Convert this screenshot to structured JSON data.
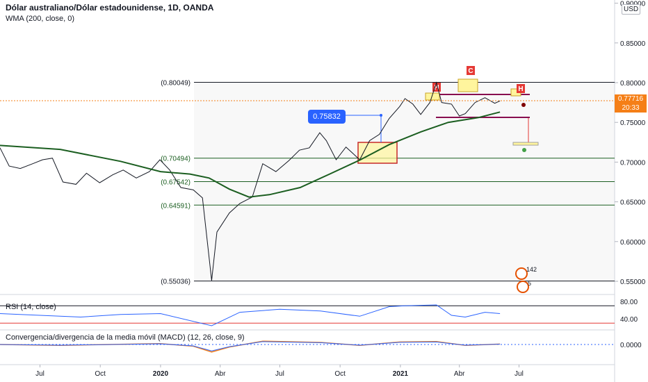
{
  "header": {
    "title": "Dólar australiano/Dólar estadounidense, 1D, OANDA",
    "indicator": "WMA (200, close, 0)"
  },
  "currency_button": "USD",
  "last_price": {
    "value": "0.77716",
    "countdown": "20:33",
    "color": "#f57f17"
  },
  "callout": "0.75832",
  "badges": {
    "h1": "H",
    "c": "C",
    "h2": "H",
    "count": "142",
    "small": "5"
  },
  "levels": [
    {
      "label": "(0.80049)",
      "value": 0.80049,
      "color": "#131722"
    },
    {
      "label": "(0.70494)",
      "value": 0.70494,
      "color": "#1b5e20"
    },
    {
      "label": "(0.67542)",
      "value": 0.67542,
      "color": "#1b5e20"
    },
    {
      "label": "(0.64591)",
      "value": 0.64591,
      "color": "#1b5e20"
    },
    {
      "label": "(0.55036)",
      "value": 0.55036,
      "color": "#131722"
    }
  ],
  "rsi": {
    "label": "RSI (14, close)",
    "ticks": [
      "80.00",
      "40.00"
    ]
  },
  "macd": {
    "label": "Convergencia/divergencia de la media móvil (MACD) (12, 26, close, 9)",
    "ticks": [
      "0.0000"
    ]
  },
  "chart_data": {
    "type": "line",
    "symbol": "AUDUSD",
    "timeframe": "1D",
    "ylim": [
      0.53,
      0.9
    ],
    "y_axis_ticks": [
      "0.55000",
      "0.60000",
      "0.65000",
      "0.70000",
      "0.75000",
      "0.80000",
      "0.85000",
      "0.90000"
    ],
    "x_axis_ticks": [
      "Jul",
      "Oct",
      "2020",
      "Abr",
      "Jul",
      "Oct",
      "2021",
      "Abr",
      "Jul"
    ],
    "x_start": "2019-05",
    "x_end": "2021-09",
    "series": [
      {
        "name": "AUDUSD",
        "color": "#131722",
        "points": [
          [
            "2019-05-01",
            0.718
          ],
          [
            "2019-05-15",
            0.695
          ],
          [
            "2019-06-01",
            0.692
          ],
          [
            "2019-06-20",
            0.698
          ],
          [
            "2019-07-05",
            0.703
          ],
          [
            "2019-07-20",
            0.705
          ],
          [
            "2019-08-05",
            0.675
          ],
          [
            "2019-08-25",
            0.672
          ],
          [
            "2019-09-10",
            0.686
          ],
          [
            "2019-09-30",
            0.674
          ],
          [
            "2019-10-20",
            0.684
          ],
          [
            "2019-11-05",
            0.69
          ],
          [
            "2019-11-25",
            0.68
          ],
          [
            "2019-12-15",
            0.688
          ],
          [
            "2019-12-31",
            0.703
          ],
          [
            "2020-01-15",
            0.69
          ],
          [
            "2020-02-01",
            0.668
          ],
          [
            "2020-02-20",
            0.665
          ],
          [
            "2020-03-05",
            0.655
          ],
          [
            "2020-03-19",
            0.551
          ],
          [
            "2020-03-27",
            0.612
          ],
          [
            "2020-04-15",
            0.636
          ],
          [
            "2020-05-01",
            0.648
          ],
          [
            "2020-05-20",
            0.656
          ],
          [
            "2020-06-05",
            0.698
          ],
          [
            "2020-06-25",
            0.688
          ],
          [
            "2020-07-15",
            0.702
          ],
          [
            "2020-07-31",
            0.715
          ],
          [
            "2020-08-15",
            0.718
          ],
          [
            "2020-08-31",
            0.737
          ],
          [
            "2020-09-10",
            0.727
          ],
          [
            "2020-09-25",
            0.703
          ],
          [
            "2020-10-10",
            0.719
          ],
          [
            "2020-10-31",
            0.703
          ],
          [
            "2020-11-15",
            0.727
          ],
          [
            "2020-11-30",
            0.735
          ],
          [
            "2020-12-15",
            0.755
          ],
          [
            "2020-12-31",
            0.77
          ],
          [
            "2021-01-08",
            0.78
          ],
          [
            "2021-01-20",
            0.773
          ],
          [
            "2021-02-01",
            0.76
          ],
          [
            "2021-02-15",
            0.775
          ],
          [
            "2021-02-25",
            0.8
          ],
          [
            "2021-03-05",
            0.775
          ],
          [
            "2021-03-20",
            0.773
          ],
          [
            "2021-04-01",
            0.758
          ],
          [
            "2021-04-10",
            0.761
          ],
          [
            "2021-04-25",
            0.775
          ],
          [
            "2021-05-10",
            0.781
          ],
          [
            "2021-05-25",
            0.774
          ],
          [
            "2021-06-02",
            0.777
          ]
        ]
      },
      {
        "name": "WMA (200, close, 0)",
        "color": "#1b5e20",
        "points": [
          [
            "2019-05-01",
            0.721
          ],
          [
            "2019-08-01",
            0.716
          ],
          [
            "2019-11-01",
            0.701
          ],
          [
            "2020-01-01",
            0.688
          ],
          [
            "2020-02-15",
            0.685
          ],
          [
            "2020-03-15",
            0.68
          ],
          [
            "2020-04-15",
            0.666
          ],
          [
            "2020-05-15",
            0.656
          ],
          [
            "2020-06-15",
            0.659
          ],
          [
            "2020-08-01",
            0.668
          ],
          [
            "2020-09-15",
            0.685
          ],
          [
            "2020-11-01",
            0.703
          ],
          [
            "2020-12-15",
            0.722
          ],
          [
            "2021-02-01",
            0.738
          ],
          [
            "2021-03-15",
            0.75
          ],
          [
            "2021-04-30",
            0.756
          ],
          [
            "2021-06-02",
            0.763
          ]
        ]
      }
    ],
    "rsi_ylim": [
      20,
      90
    ],
    "rsi_levels": [
      70,
      30
    ],
    "rsi_points": [
      [
        "2019-05-01",
        52
      ],
      [
        "2019-07-01",
        48
      ],
      [
        "2019-09-01",
        44
      ],
      [
        "2019-11-01",
        50
      ],
      [
        "2020-01-01",
        52
      ],
      [
        "2020-03-19",
        24
      ],
      [
        "2020-05-01",
        55
      ],
      [
        "2020-07-01",
        62
      ],
      [
        "2020-09-01",
        58
      ],
      [
        "2020-10-31",
        46
      ],
      [
        "2020-12-15",
        68
      ],
      [
        "2021-01-08",
        70
      ],
      [
        "2021-02-25",
        72
      ],
      [
        "2021-03-20",
        48
      ],
      [
        "2021-04-10",
        44
      ],
      [
        "2021-05-10",
        55
      ],
      [
        "2021-06-02",
        52
      ]
    ],
    "macd_points": [
      [
        "2019-05-01",
        0.0
      ],
      [
        "2019-08-01",
        -0.002
      ],
      [
        "2019-12-31",
        0.002
      ],
      [
        "2020-02-20",
        -0.004
      ],
      [
        "2020-03-19",
        -0.018
      ],
      [
        "2020-04-15",
        -0.006
      ],
      [
        "2020-06-05",
        0.008
      ],
      [
        "2020-09-01",
        0.005
      ],
      [
        "2020-10-31",
        -0.002
      ],
      [
        "2020-12-31",
        0.006
      ],
      [
        "2021-02-25",
        0.007
      ],
      [
        "2021-04-10",
        -0.002
      ],
      [
        "2021-06-02",
        0.001
      ]
    ]
  }
}
